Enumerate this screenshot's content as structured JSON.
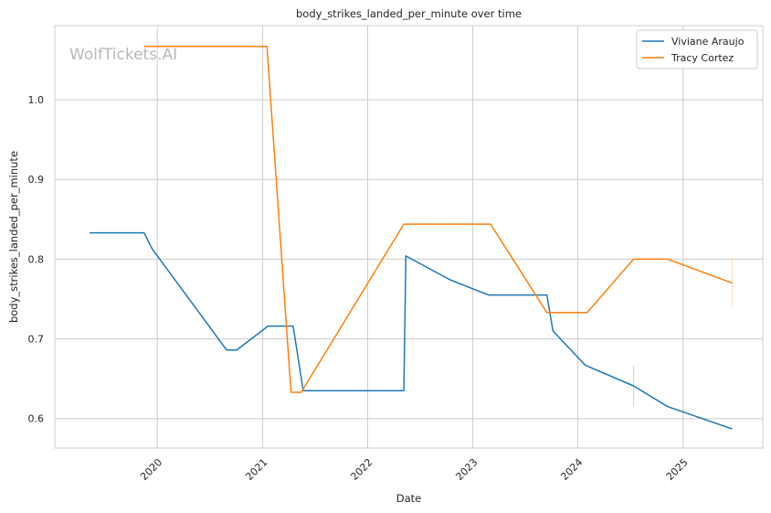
{
  "chart_data": {
    "type": "line",
    "title": "body_strikes_landed_per_minute over time",
    "xlabel": "Date",
    "ylabel": "body_strikes_landed_per_minute",
    "watermark": "WolfTickets.AI",
    "xlim": [
      "2019-01-10",
      "2025-10-05"
    ],
    "ylim": [
      0.563,
      1.093
    ],
    "x_ticks": [
      "2020-01-01",
      "2021-01-01",
      "2022-01-01",
      "2023-01-01",
      "2024-01-01",
      "2025-01-01"
    ],
    "x_tick_labels": [
      "2020",
      "2021",
      "2022",
      "2023",
      "2024",
      "2025"
    ],
    "y_ticks": [
      0.6,
      0.7,
      0.8,
      0.9,
      1.0
    ],
    "y_tick_labels": [
      "0.6",
      "0.7",
      "0.8",
      "0.9",
      "1.0"
    ],
    "grid": true,
    "legend_position": "top-right",
    "series": [
      {
        "name": "Viviane Araujo",
        "color": "#1f77b4",
        "points": [
          [
            "2019-05-11",
            0.833
          ],
          [
            "2019-11-16",
            0.833
          ],
          [
            "2019-12-14",
            0.813
          ],
          [
            "2020-08-29",
            0.686
          ],
          [
            "2020-10-03",
            0.686
          ],
          [
            "2021-01-20",
            0.716
          ],
          [
            "2021-04-17",
            0.716
          ],
          [
            "2021-05-22",
            0.635
          ],
          [
            "2022-05-07",
            0.635
          ],
          [
            "2022-05-14",
            0.804
          ],
          [
            "2022-10-15",
            0.774
          ],
          [
            "2023-02-25",
            0.755
          ],
          [
            "2023-09-16",
            0.755
          ],
          [
            "2023-10-07",
            0.71
          ],
          [
            "2024-01-27",
            0.667
          ],
          [
            "2024-07-13",
            0.641
          ],
          [
            "2024-11-09",
            0.615
          ],
          [
            "2025-06-21",
            0.587
          ]
        ]
      },
      {
        "name": "Tracy Cortez",
        "color": "#ff7f0e",
        "points": [
          [
            "2019-11-16",
            1.067
          ],
          [
            "2021-01-16",
            1.067
          ],
          [
            "2021-04-10",
            0.633
          ],
          [
            "2021-05-15",
            0.633
          ],
          [
            "2022-05-07",
            0.844
          ],
          [
            "2023-03-04",
            0.844
          ],
          [
            "2023-09-16",
            0.733
          ],
          [
            "2024-02-03",
            0.733
          ],
          [
            "2024-07-13",
            0.8
          ],
          [
            "2024-11-09",
            0.8
          ],
          [
            "2025-06-21",
            0.77
          ]
        ]
      }
    ],
    "band_marks": [
      {
        "series": "Viviane Araujo",
        "x": "2024-07-13",
        "y_range": [
          0.615,
          0.667
        ]
      },
      {
        "series": "Tracy Cortez",
        "x": "2025-06-21",
        "y_range": [
          0.74,
          0.8
        ]
      }
    ]
  }
}
